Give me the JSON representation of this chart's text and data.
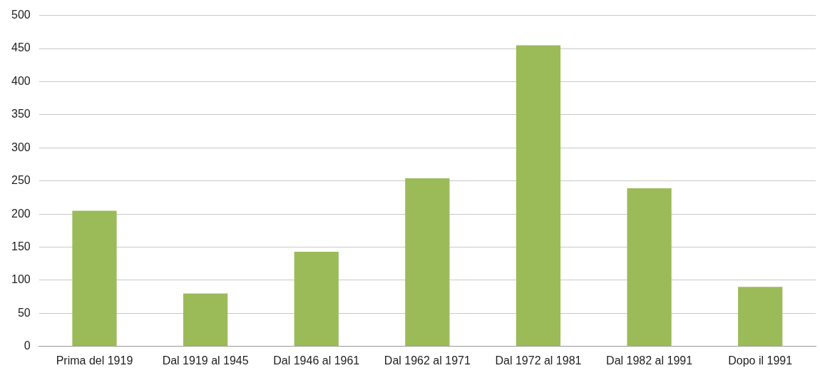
{
  "chart_data": {
    "type": "bar",
    "categories": [
      "Prima del 1919",
      "Dal 1919 al 1945",
      "Dal 1946 al 1961",
      "Dal 1962 al 1971",
      "Dal 1972 al 1981",
      "Dal 1982 al 1991",
      "Dopo il 1991"
    ],
    "values": [
      205,
      80,
      143,
      254,
      455,
      239,
      90
    ],
    "color": "#9bbb59",
    "ylim": [
      0,
      500
    ],
    "yticks": [
      0,
      50,
      100,
      150,
      200,
      250,
      300,
      350,
      400,
      450,
      500
    ],
    "grid": "y",
    "legend": false
  }
}
